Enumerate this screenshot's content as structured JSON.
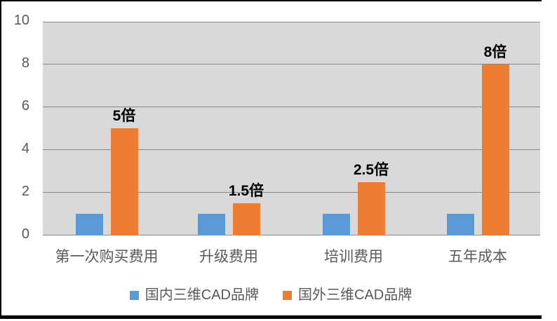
{
  "chart_data": {
    "type": "bar",
    "title": "",
    "categories": [
      "第一次购买费用",
      "升级费用",
      "培训费用",
      "五年成本"
    ],
    "series": [
      {
        "name": "国内三维CAD品牌",
        "color": "#5B9BD5",
        "values": [
          1,
          1,
          1,
          1
        ],
        "data_labels": [
          "",
          "",
          "",
          ""
        ]
      },
      {
        "name": "国外三维CAD品牌",
        "color": "#ED7D31",
        "values": [
          5,
          1.5,
          2.5,
          8
        ],
        "data_labels": [
          "5倍",
          "1.5倍",
          "2.5倍",
          "8倍"
        ]
      }
    ],
    "xlabel": "",
    "ylabel": "",
    "ylim": [
      0,
      10
    ],
    "y_ticks": [
      0,
      2,
      4,
      6,
      8,
      10
    ],
    "y_tick_labels": [
      "0",
      "2",
      "4",
      "6",
      "8",
      "10"
    ],
    "grid": true,
    "legend_position": "bottom",
    "colors": {
      "plot_background": "#D9D9D9",
      "gridline": "#898989",
      "axis_text": "#595959",
      "data_label_text": "#000000",
      "frame": "#000000"
    }
  }
}
